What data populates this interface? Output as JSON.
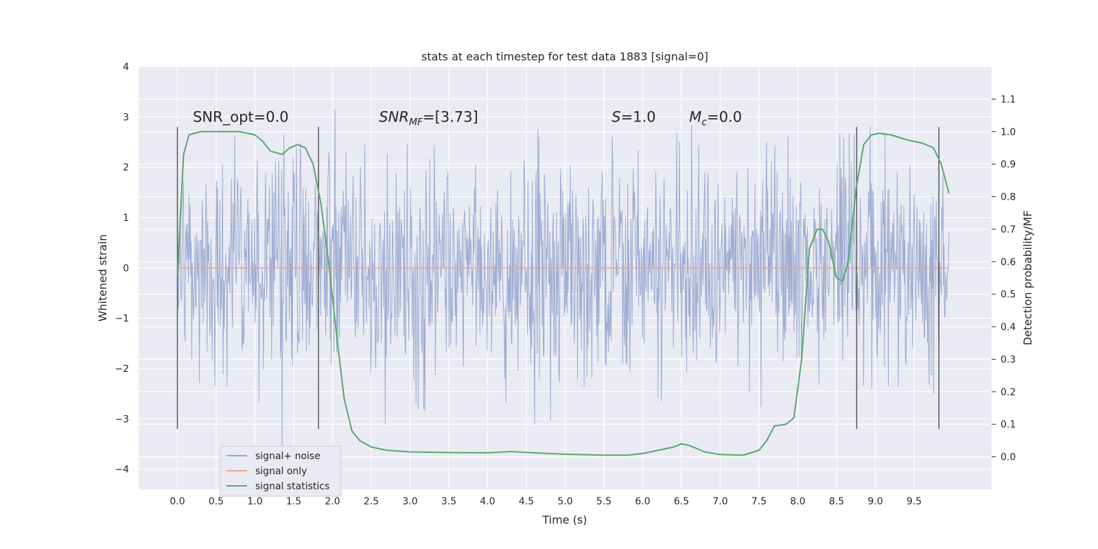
{
  "chart_data": {
    "type": "line",
    "title": "stats at each timestep for test data 1883 [signal=0]",
    "xlabel": "Time (s)",
    "ylabel": "Whitened strain",
    "y2label": "Detection probability/MF",
    "xlim": [
      -0.5,
      10.5
    ],
    "ylim": [
      -4.4,
      4.0
    ],
    "y2lim": [
      -0.1,
      1.2
    ],
    "x_ticks": [
      0.0,
      0.5,
      1.0,
      1.5,
      2.0,
      2.5,
      3.0,
      3.5,
      4.0,
      4.5,
      5.0,
      5.5,
      6.0,
      6.5,
      7.0,
      7.5,
      8.0,
      8.5,
      9.0,
      9.5
    ],
    "x_tick_labels": [
      "0.0",
      "0.5",
      "1.0",
      "1.5",
      "2.0",
      "2.5",
      "3.0",
      "3.5",
      "4.0",
      "4.5",
      "5.0",
      "5.5",
      "6.0",
      "6.5",
      "7.0",
      "7.5",
      "8.0",
      "8.5",
      "9.0",
      "9.5"
    ],
    "y_ticks": [
      -4,
      -3,
      -2,
      -1,
      0,
      1,
      2,
      3,
      4
    ],
    "y_tick_labels": [
      "−4",
      "−3",
      "−2",
      "−1",
      "0",
      "1",
      "2",
      "3",
      "4"
    ],
    "y2_ticks": [
      0.0,
      0.1,
      0.2,
      0.3,
      0.4,
      0.5,
      0.6,
      0.7,
      0.8,
      0.9,
      1.0,
      1.1
    ],
    "y2_tick_labels": [
      "0.0",
      "0.1",
      "0.2",
      "0.3",
      "0.4",
      "0.5",
      "0.6",
      "0.7",
      "0.8",
      "0.9",
      "1.0",
      "1.1"
    ],
    "grid": true,
    "legend_position": "lower-left",
    "annotations": [
      {
        "text": "SNR_opt=0.0",
        "x": 0.2,
        "y": 2.9
      },
      {
        "text": "SNR_MF=[3.73]",
        "x": 2.6,
        "y": 2.9
      },
      {
        "text": "S=1.0",
        "x": 5.6,
        "y": 2.9
      },
      {
        "text": "M_c=0.0",
        "x": 6.6,
        "y": 2.9
      }
    ],
    "vertical_markers": [
      0.0,
      1.82,
      8.76,
      9.82
    ],
    "vertical_marker_range": [
      -3.2,
      2.8
    ],
    "series": [
      {
        "name": "signal+ noise",
        "axis": "left",
        "color": "#98a8d0",
        "style": "noise band",
        "x_range": [
          0.0,
          9.95
        ],
        "core_range": [
          -1.5,
          1.5
        ],
        "extreme_range": [
          -3.85,
          3.6
        ]
      },
      {
        "name": "signal only",
        "axis": "left",
        "color": "#e8a48a",
        "x": [
          0.0,
          9.95
        ],
        "values": [
          0.0,
          0.0
        ]
      },
      {
        "name": "signal statistics",
        "axis": "right",
        "color": "#55a868",
        "x": [
          0.0,
          0.08,
          0.15,
          0.3,
          0.5,
          0.8,
          1.0,
          1.1,
          1.2,
          1.35,
          1.45,
          1.55,
          1.65,
          1.75,
          1.85,
          1.95,
          2.05,
          2.15,
          2.25,
          2.35,
          2.5,
          2.7,
          3.0,
          3.5,
          4.0,
          4.3,
          4.6,
          5.0,
          5.5,
          5.8,
          6.0,
          6.2,
          6.4,
          6.5,
          6.6,
          6.8,
          7.0,
          7.3,
          7.5,
          7.6,
          7.7,
          7.85,
          7.95,
          8.05,
          8.15,
          8.25,
          8.32,
          8.4,
          8.5,
          8.58,
          8.65,
          8.75,
          8.85,
          8.95,
          9.05,
          9.2,
          9.4,
          9.6,
          9.75,
          9.85,
          9.95
        ],
        "values": [
          0.56,
          0.93,
          0.99,
          1.0,
          1.0,
          1.0,
          0.99,
          0.97,
          0.94,
          0.93,
          0.95,
          0.96,
          0.95,
          0.9,
          0.78,
          0.6,
          0.38,
          0.18,
          0.08,
          0.05,
          0.03,
          0.02,
          0.015,
          0.013,
          0.012,
          0.016,
          0.012,
          0.008,
          0.005,
          0.005,
          0.01,
          0.02,
          0.03,
          0.04,
          0.035,
          0.015,
          0.007,
          0.005,
          0.02,
          0.05,
          0.095,
          0.1,
          0.12,
          0.3,
          0.64,
          0.7,
          0.7,
          0.66,
          0.55,
          0.54,
          0.6,
          0.82,
          0.96,
          0.99,
          0.995,
          0.99,
          0.975,
          0.965,
          0.95,
          0.9,
          0.81
        ]
      }
    ]
  }
}
